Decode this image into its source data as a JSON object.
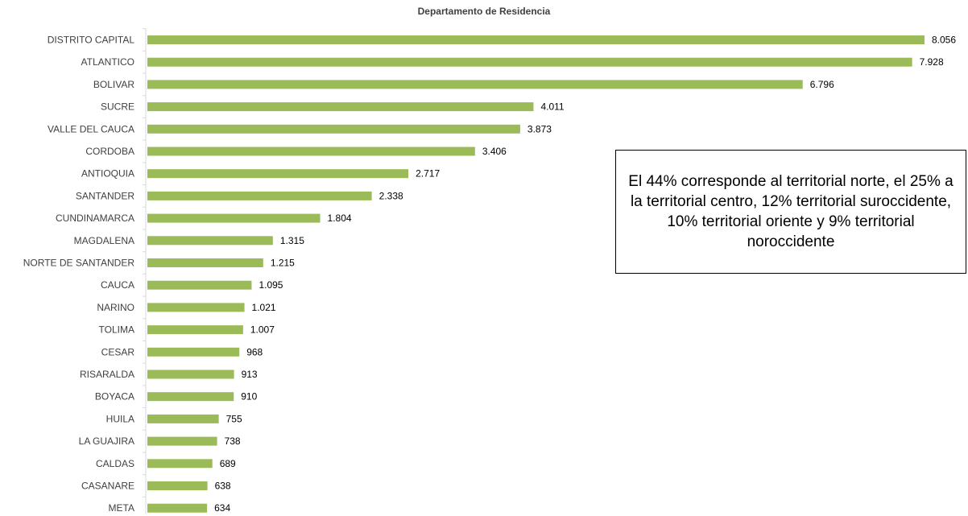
{
  "chart_data": {
    "type": "bar",
    "orientation": "horizontal",
    "title": "Departamento de Residencia",
    "categories": [
      "DISTRITO CAPITAL",
      "ATLANTICO",
      "BOLIVAR",
      "SUCRE",
      "VALLE DEL CAUCA",
      "CORDOBA",
      "ANTIOQUIA",
      "SANTANDER",
      "CUNDINAMARCA",
      "MAGDALENA",
      "NORTE DE SANTANDER",
      "CAUCA",
      "NARINO",
      "TOLIMA",
      "CESAR",
      "RISARALDA",
      "BOYACA",
      "HUILA",
      "LA GUAJIRA",
      "CALDAS",
      "CASANARE",
      "META"
    ],
    "values": [
      8056,
      7928,
      6796,
      4011,
      3873,
      3406,
      2717,
      2338,
      1804,
      1315,
      1215,
      1095,
      1021,
      1007,
      968,
      913,
      910,
      755,
      738,
      689,
      638,
      634
    ],
    "value_labels": [
      "8.056",
      "7.928",
      "6.796",
      "4.011",
      "3.873",
      "3.406",
      "2.717",
      "2.338",
      "1.804",
      "1.315",
      "1.215",
      "1.095",
      "1.021",
      "1.007",
      "968",
      "913",
      "910",
      "755",
      "738",
      "689",
      "638",
      "634"
    ],
    "xlabel": "",
    "ylabel": "",
    "grid": false,
    "legend": "none",
    "bar_color": "#9BBB59"
  },
  "annotation": {
    "text": "El 44% corresponde al territorial norte, el 25% a la territorial centro, 12% territorial suroccidente, 10% territorial oriente y 9% territorial noroccidente"
  }
}
